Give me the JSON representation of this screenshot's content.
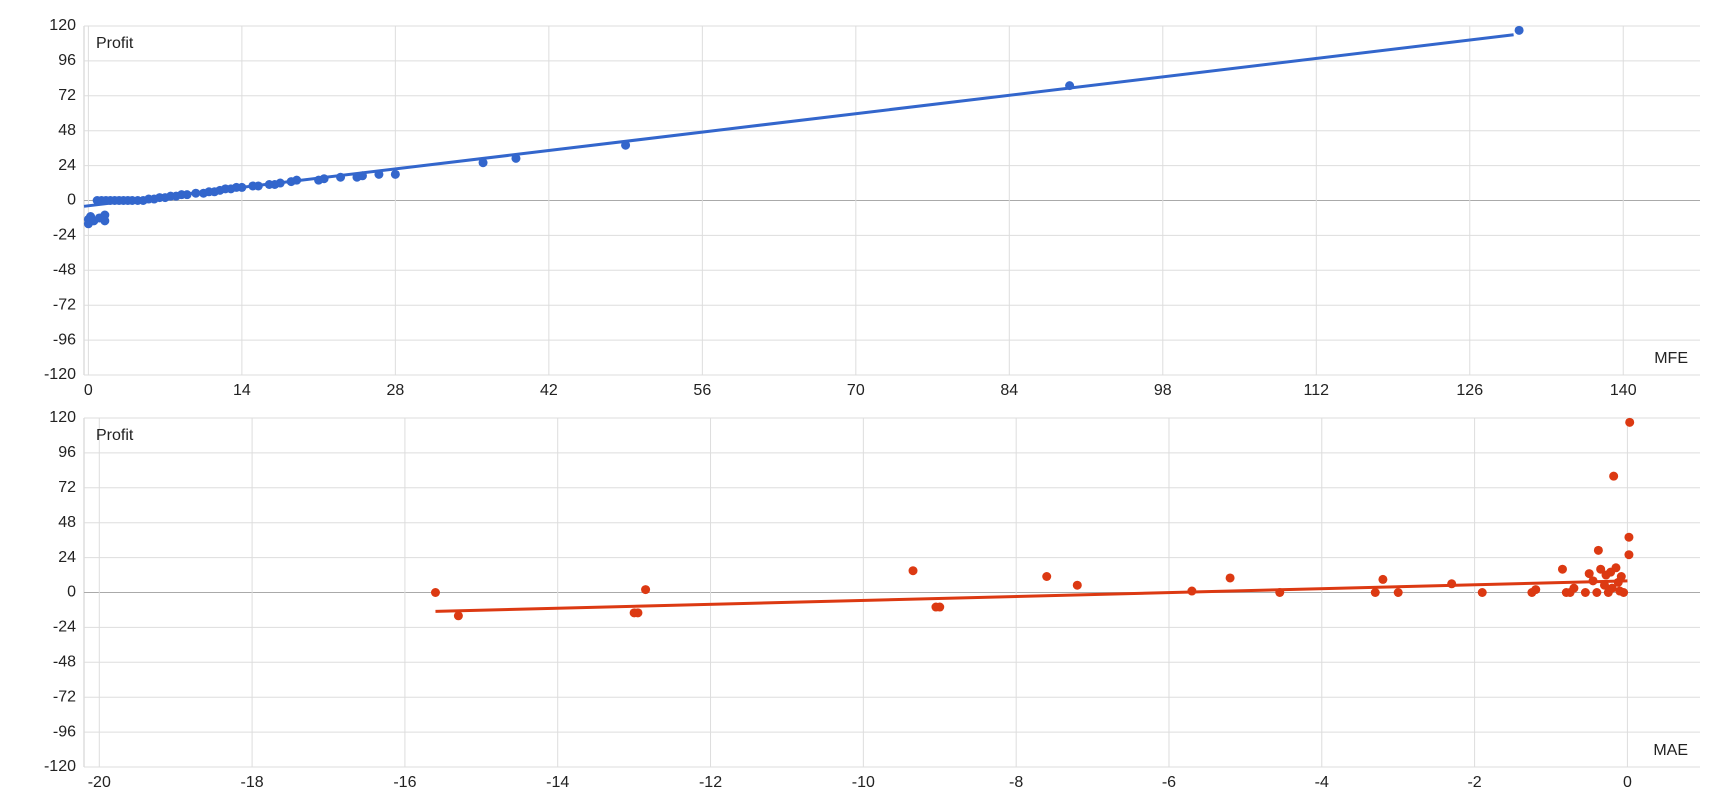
{
  "chart_data": [
    {
      "type": "scatter",
      "y_label": "Profit",
      "x_label": "MFE",
      "color": "#3366cc",
      "grid": true,
      "xlim": [
        -0.4,
        147
      ],
      "xticks": [
        0,
        14,
        28,
        42,
        56,
        70,
        84,
        98,
        112,
        126,
        140
      ],
      "ylim": [
        -120,
        120
      ],
      "yticks": [
        120,
        96,
        72,
        48,
        24,
        0,
        -24,
        -48,
        -72,
        -96,
        -120
      ],
      "x": [
        0,
        0,
        0.2,
        0.5,
        1,
        1.5,
        1.5,
        0.8,
        1.2,
        1.6,
        2,
        2.4,
        2.8,
        3.2,
        3.6,
        4,
        4.5,
        5,
        5.5,
        6,
        6.5,
        7,
        7.5,
        8,
        8.5,
        9,
        9.8,
        10.5,
        11,
        11.5,
        12,
        12.5,
        13,
        13.5,
        14,
        15,
        15.5,
        16.5,
        17,
        17.5,
        18.5,
        19,
        21,
        21.5,
        23,
        24.5,
        25,
        26.5,
        28,
        36,
        39,
        49,
        89.5,
        130.5
      ],
      "values": [
        -16,
        -13,
        -11,
        -14,
        -12,
        -10,
        -14,
        0,
        0,
        0,
        0,
        0,
        0,
        0,
        0,
        0,
        0,
        0,
        1,
        1,
        2,
        2,
        3,
        3,
        4,
        4,
        5,
        5,
        6,
        6,
        7,
        8,
        8,
        9,
        9,
        10,
        10,
        11,
        11,
        12,
        13,
        14,
        14,
        15,
        16,
        16,
        17,
        18,
        18,
        26,
        29,
        38,
        79,
        117
      ],
      "trendline": {
        "x": [
          -0.4,
          130
        ],
        "values": [
          -4,
          114
        ]
      }
    },
    {
      "type": "scatter",
      "y_label": "Profit",
      "x_label": "MAE",
      "color": "#dc3912",
      "grid": true,
      "xlim": [
        -20.2,
        0.95
      ],
      "xticks": [
        -20,
        -18,
        -16,
        -14,
        -12,
        -10,
        -8,
        -6,
        -4,
        -2,
        0
      ],
      "ylim": [
        -120,
        120
      ],
      "yticks": [
        120,
        96,
        72,
        48,
        24,
        0,
        -24,
        -48,
        -72,
        -96,
        -120
      ],
      "x": [
        -15.6,
        -15.3,
        -13,
        -12.95,
        -12.85,
        -9.35,
        -9.05,
        -9.0,
        -7.6,
        -7.2,
        -5.7,
        -5.2,
        -4.55,
        -3.3,
        -3.2,
        -3.0,
        -2.3,
        -1.9,
        -1.25,
        -1.2,
        -0.85,
        -0.8,
        -0.75,
        -0.7,
        -0.55,
        -0.5,
        -0.45,
        -0.4,
        -0.38,
        -0.35,
        -0.3,
        -0.28,
        -0.25,
        -0.22,
        -0.2,
        -0.18,
        -0.15,
        -0.12,
        -0.1,
        -0.08,
        -0.05,
        0.02,
        0.02,
        0.03
      ],
      "values": [
        0,
        -16,
        -14,
        -14,
        2,
        15,
        -10,
        -10,
        11,
        5,
        1,
        10,
        0,
        0,
        9,
        0,
        6,
        0,
        0,
        2,
        16,
        0,
        0,
        3,
        0,
        13,
        8,
        0,
        29,
        16,
        5,
        12,
        0,
        14,
        3,
        80,
        17,
        7,
        1,
        11,
        0,
        26,
        38,
        117
      ],
      "trendline": {
        "x": [
          -15.6,
          0
        ],
        "values": [
          -13,
          8
        ]
      }
    }
  ]
}
